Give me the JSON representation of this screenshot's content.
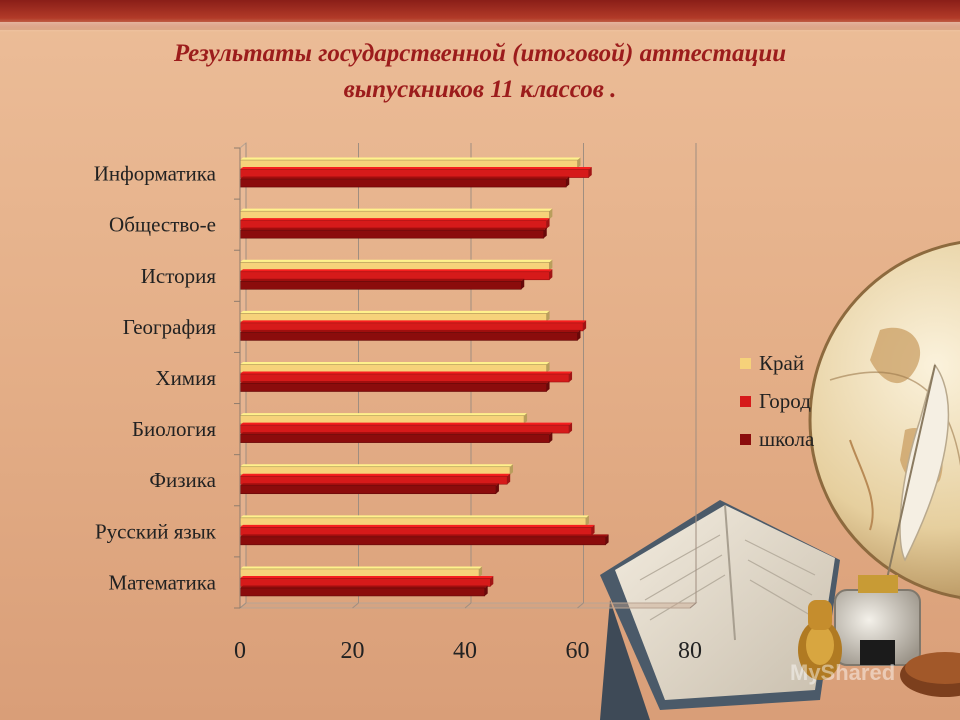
{
  "title_line1": "Результаты государственной (итоговой) аттестации",
  "title_line2": "выпускников 11 классов .",
  "colors": {
    "background": "#e9b893",
    "title": "#9c1c1c"
  },
  "chart_data": {
    "type": "bar",
    "orientation": "horizontal",
    "categories": [
      "Информатика",
      "Общество-е",
      "История",
      "География",
      "Химия",
      "Биология",
      "Физика",
      "Русский язык",
      "Математика"
    ],
    "series": [
      {
        "name": "Край",
        "color": "#f6d27a",
        "values": [
          60,
          55,
          55,
          54.5,
          54.5,
          50.5,
          48,
          61.5,
          42.5
        ]
      },
      {
        "name": "Город",
        "color": "#d61a1a",
        "values": [
          62,
          54.5,
          55,
          61,
          58.5,
          58.5,
          47.5,
          62.5,
          44.5
        ]
      },
      {
        "name": "школа",
        "color": "#8b0c0c",
        "values": [
          58,
          54,
          50,
          60,
          54.5,
          55,
          45.5,
          65,
          43.5
        ]
      }
    ],
    "xlim": [
      0,
      80
    ],
    "xticks": [
      "0",
      "20",
      "40",
      "60",
      "80"
    ],
    "legend_position": "right",
    "grid": true
  },
  "watermark": "MyShared"
}
